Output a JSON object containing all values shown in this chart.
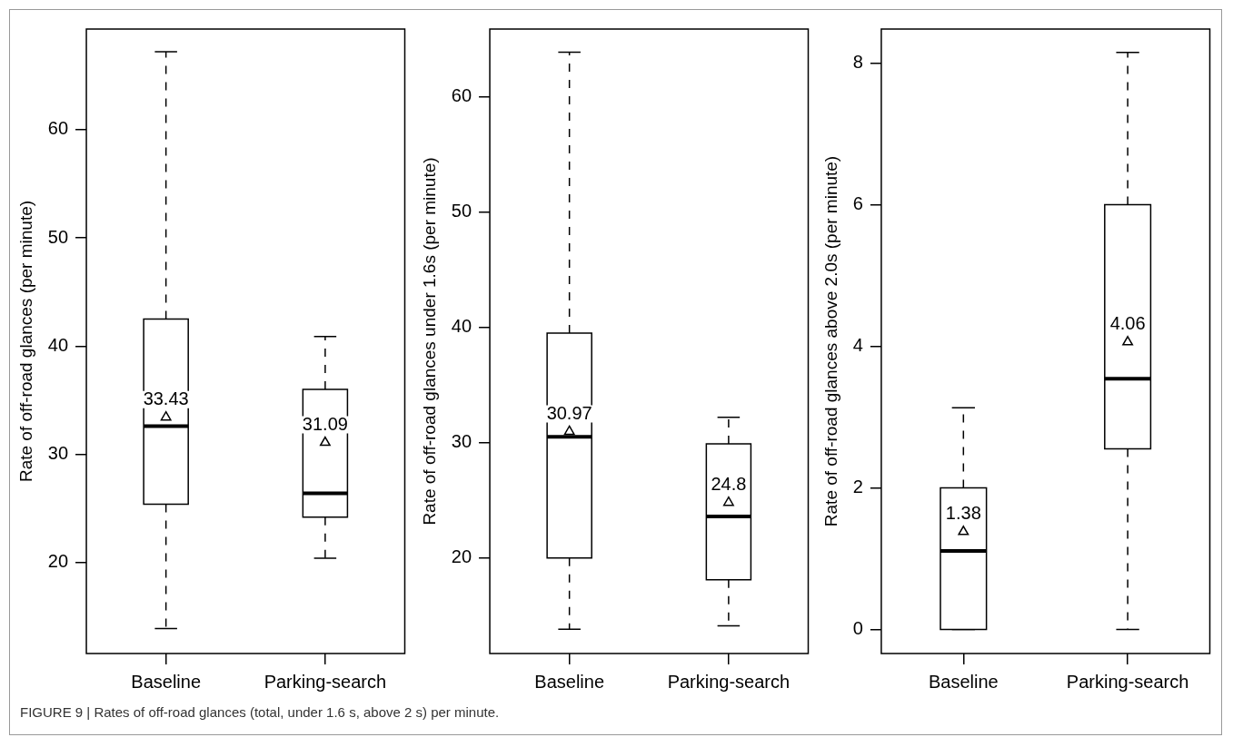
{
  "chart_data": [
    {
      "type": "box",
      "ylabel": "Rate of off-road glances (per minute)",
      "categories": [
        "Baseline",
        "Parking-search"
      ],
      "ylim": [
        11.6,
        69.3
      ],
      "yticks": [
        20,
        30,
        40,
        50,
        60
      ],
      "grid": false,
      "marker": "triangle",
      "color": "#ffffff",
      "boxes": [
        {
          "low": 13.9,
          "q1": 25.4,
          "median": 32.6,
          "q3": 42.5,
          "high": 67.2,
          "mean": 33.43
        },
        {
          "low": 20.4,
          "q1": 24.2,
          "median": 26.4,
          "q3": 36.0,
          "high": 40.9,
          "mean": 31.09
        }
      ],
      "annotations": [
        "33.43",
        "31.09"
      ]
    },
    {
      "type": "box",
      "ylabel": "Rate of off-road glances under 1.6s (per minute)",
      "categories": [
        "Baseline",
        "Parking-search"
      ],
      "ylim": [
        11.7,
        65.9
      ],
      "yticks": [
        20,
        30,
        40,
        50,
        60
      ],
      "grid": false,
      "marker": "triangle",
      "color": "#ffffff",
      "boxes": [
        {
          "low": 13.8,
          "q1": 20.0,
          "median": 30.5,
          "q3": 39.5,
          "high": 63.9,
          "mean": 30.97
        },
        {
          "low": 14.1,
          "q1": 18.1,
          "median": 23.6,
          "q3": 29.9,
          "high": 32.2,
          "mean": 24.8
        }
      ],
      "annotations": [
        "30.97",
        "24.8"
      ]
    },
    {
      "type": "box",
      "ylabel": "Rate of off-road glances above 2.0s (per minute)",
      "categories": [
        "Baseline",
        "Parking-search"
      ],
      "ylim": [
        -0.34,
        8.48
      ],
      "yticks": [
        0,
        2,
        4,
        6,
        8
      ],
      "grid": false,
      "marker": "triangle",
      "color": "#ffffff",
      "boxes": [
        {
          "low": 0,
          "q1": 0,
          "median": 1.11,
          "q3": 2.0,
          "high": 3.13,
          "mean": 1.38
        },
        {
          "low": 0,
          "q1": 2.55,
          "median": 3.54,
          "q3": 6.0,
          "high": 8.15,
          "mean": 4.06
        }
      ],
      "annotations": [
        "1.38",
        "4.06",
        "FIGURE 9 | Rates of off-road glances (total, under 1.6 s, above 2 s) per minute."
      ]
    }
  ]
}
